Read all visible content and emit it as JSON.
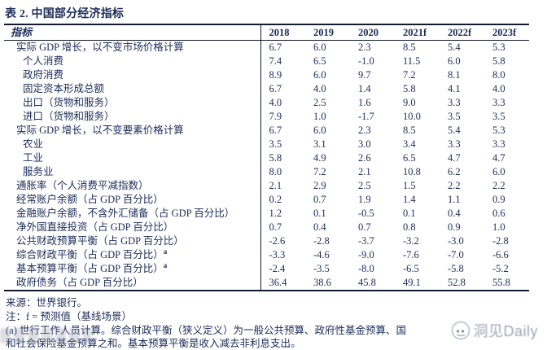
{
  "title": "表 2. 中国部分经济指标",
  "table": {
    "indicator_header": "指标",
    "years": [
      "2018",
      "2019",
      "2020",
      "2021f",
      "2022f",
      "2023f"
    ],
    "rows": [
      {
        "label": "实际 GDP 增长，以不变市场价格计算",
        "indent": false,
        "values": [
          "6.7",
          "6.0",
          "2.3",
          "8.5",
          "5.4",
          "5.3"
        ]
      },
      {
        "label": "个人消费",
        "indent": true,
        "values": [
          "7.4",
          "6.5",
          "-1.0",
          "11.5",
          "6.0",
          "5.8"
        ]
      },
      {
        "label": "政府消费",
        "indent": true,
        "values": [
          "8.9",
          "6.0",
          "9.7",
          "7.2",
          "8.1",
          "8.0"
        ]
      },
      {
        "label": "固定资本形成总额",
        "indent": true,
        "values": [
          "6.7",
          "4.0",
          "1.4",
          "5.8",
          "4.1",
          "4.0"
        ]
      },
      {
        "label": "出口（货物和服务）",
        "indent": true,
        "values": [
          "4.0",
          "2.5",
          "1.6",
          "9.0",
          "3.3",
          "3.3"
        ]
      },
      {
        "label": "进口（货物和服务）",
        "indent": true,
        "values": [
          "7.9",
          "1.0",
          "-1.7",
          "10.0",
          "3.5",
          "3.5"
        ]
      },
      {
        "label": "实际 GDP 增长，以不变要素价格计算",
        "indent": false,
        "values": [
          "6.7",
          "6.0",
          "2.3",
          "8.5",
          "5.4",
          "5.3"
        ]
      },
      {
        "label": "农业",
        "indent": true,
        "values": [
          "3.5",
          "3.1",
          "3.0",
          "3.4",
          "3.3",
          "3.3"
        ]
      },
      {
        "label": "工业",
        "indent": true,
        "values": [
          "5.8",
          "4.9",
          "2.6",
          "6.5",
          "4.7",
          "4.7"
        ]
      },
      {
        "label": "服务业",
        "indent": true,
        "values": [
          "8.0",
          "7.2",
          "2.1",
          "10.8",
          "6.2",
          "6.0"
        ]
      },
      {
        "label": "通胀率（个人消费平减指数）",
        "indent": false,
        "values": [
          "2.1",
          "2.9",
          "2.5",
          "1.5",
          "2.2",
          "2.2"
        ]
      },
      {
        "label": "经常账户余额（占 GDP 百分比）",
        "indent": false,
        "values": [
          "0.2",
          "0.7",
          "1.9",
          "1.4",
          "1.1",
          "0.9"
        ]
      },
      {
        "label": "金融账户余额，不含外汇储备（占 GDP 百分比）",
        "indent": false,
        "values": [
          "1.2",
          "0.1",
          "-0.5",
          "0.1",
          "0.4",
          "0.6"
        ]
      },
      {
        "label": "净外国直接投资（占 GDP 百分比）",
        "indent": false,
        "values": [
          "0.7",
          "0.4",
          "0.7",
          "0.8",
          "0.9",
          "1.0"
        ]
      },
      {
        "label": "公共财政预算平衡（占 GDP 百分比）",
        "indent": false,
        "values": [
          "-2.6",
          "-2.8",
          "-3.7",
          "-3.2",
          "-3.0",
          "-2.8"
        ]
      },
      {
        "label": "综合财政平衡（占 GDP 百分比）",
        "sup": "a",
        "indent": false,
        "values": [
          "-3.3",
          "-4.6",
          "-9.0",
          "-7.6",
          "-7.0",
          "-6.6"
        ]
      },
      {
        "label": "基本预算平衡（占 GDP 百分比）",
        "sup": "a",
        "indent": false,
        "values": [
          "-2.4",
          "-3.5",
          "-8.0",
          "-6.5",
          "-5.8",
          "-5.2"
        ]
      },
      {
        "label": "政府债务（占 GDP 百分比）",
        "indent": false,
        "values": [
          "36.4",
          "38.6",
          "45.8",
          "49.1",
          "52.8",
          "55.8"
        ]
      }
    ]
  },
  "footer": {
    "source": "来源：世界银行。",
    "note_f": "注：f = 预测值（基线场景）",
    "note_a_line1": "(a) 世行工作人员计算。综合财政平衡（狭义定义）为一般公共预算、政府性基金预算、国",
    "note_a_line2": "和社会保险基金预算之和。基本预算平衡是收入减去非利息支出。"
  },
  "watermark": {
    "text": "洞见Daily"
  },
  "colors": {
    "text": "#1b2c58",
    "border": "#141a2e",
    "watermark_text": "#8d96aa"
  }
}
